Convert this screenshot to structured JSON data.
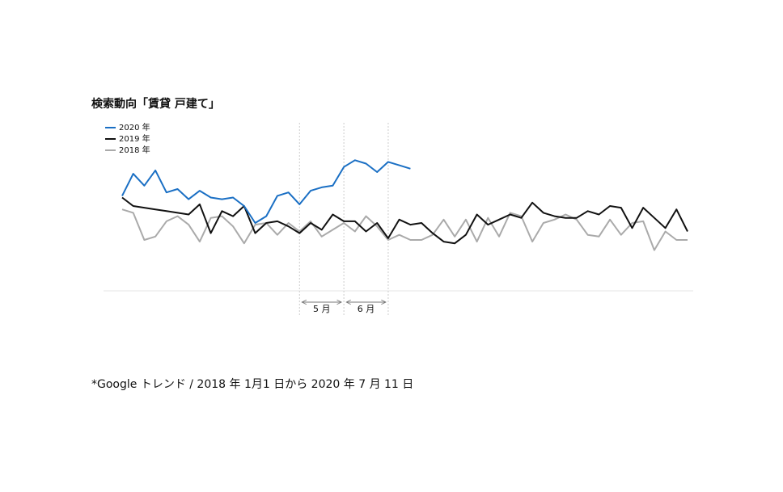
{
  "chart_data": {
    "type": "line",
    "title": "検索動向「賃貸 戸建て」",
    "categories": [
      null,
      null,
      null,
      null,
      null,
      null,
      null,
      null,
      null,
      null,
      null,
      null,
      null,
      null,
      null,
      null,
      null,
      null,
      null,
      null,
      null,
      null,
      null,
      null,
      null,
      null,
      null,
      null,
      null,
      null,
      null,
      null,
      null,
      null,
      null,
      null,
      null,
      null,
      null,
      null,
      null,
      null,
      null,
      null,
      null,
      null,
      null,
      null,
      null,
      null,
      null,
      null
    ],
    "series": [
      {
        "name": "2020 年",
        "color": "#1a6fc4",
        "values": [
          56,
          69,
          62,
          71,
          58,
          60,
          54,
          59,
          55,
          54,
          55,
          50,
          40,
          44,
          56,
          58,
          51,
          59,
          61,
          62,
          73,
          77,
          75,
          70,
          76,
          74,
          72,
          null,
          null,
          null,
          null,
          null,
          null,
          null,
          null,
          null,
          null,
          null,
          null,
          null,
          null,
          null,
          null,
          null,
          null,
          null,
          null,
          null,
          null,
          null,
          null,
          null
        ]
      },
      {
        "name": "2019 年",
        "color": "#111111",
        "values": [
          55,
          50,
          49,
          48,
          47,
          46,
          45,
          51,
          34,
          47,
          44,
          50,
          34,
          40,
          41,
          38,
          34,
          40,
          36,
          45,
          41,
          41,
          35,
          40,
          31,
          42,
          39,
          40,
          34,
          29,
          28,
          33,
          45,
          39,
          42,
          45,
          43,
          52,
          46,
          44,
          43,
          43,
          47,
          45,
          50,
          49,
          37,
          49,
          43,
          37,
          48,
          35
        ]
      },
      {
        "name": "2018 年",
        "color": "#aaaaaa",
        "values": [
          48,
          46,
          30,
          32,
          41,
          44,
          39,
          29,
          43,
          44,
          38,
          28,
          39,
          40,
          33,
          40,
          35,
          41,
          32,
          36,
          40,
          35,
          44,
          38,
          30,
          33,
          30,
          30,
          33,
          42,
          32,
          42,
          29,
          43,
          32,
          46,
          44,
          29,
          40,
          42,
          45,
          42,
          33,
          32,
          42,
          33,
          40,
          41,
          24,
          35,
          30,
          30
        ]
      }
    ],
    "ylim": [
      0,
      100
    ],
    "annotations": [
      "5 月",
      "6 月"
    ],
    "source": "*Google トレンド / 2018 年 1月1 日から 2020 年 7 月 11 日"
  }
}
